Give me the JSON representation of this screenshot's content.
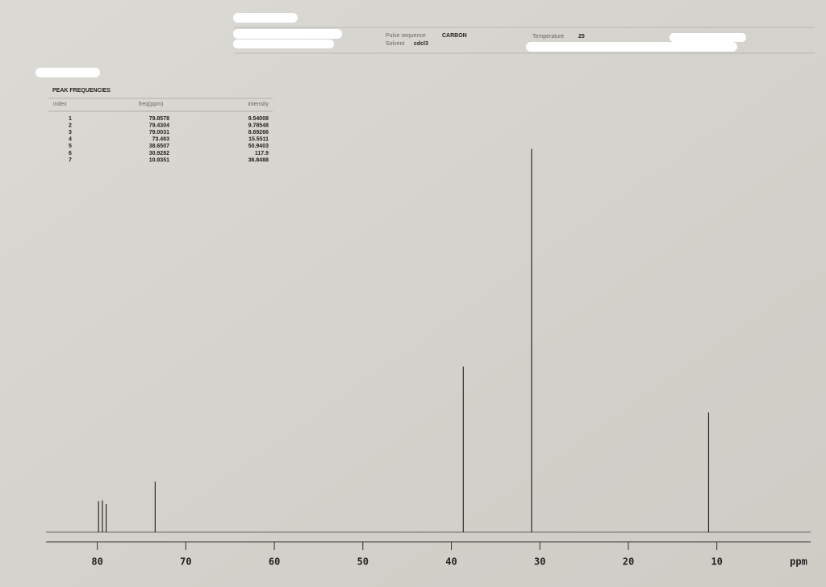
{
  "header": {
    "pulse_sequence_label": "Pulse sequence",
    "pulse_sequence": "CARBON",
    "solvent_label": "Solvent",
    "solvent": "cdcl3",
    "temperature_label": "Temperature",
    "temperature": "25"
  },
  "table": {
    "title": "PEAK FREQUENCIES",
    "columns": [
      "index",
      "freq(ppm)",
      "intensity"
    ],
    "index": [
      "1",
      "2",
      "3",
      "4",
      "5",
      "6",
      "7"
    ]
  },
  "chart_data": {
    "type": "stem",
    "x": [
      79.8578,
      79.4304,
      79.0031,
      73.463,
      38.6507,
      30.9282,
      10.9351
    ],
    "values": [
      9.54008,
      9.78548,
      8.69266,
      15.5511,
      50.9403,
      117.9,
      36.8488
    ],
    "color": "#2a2a2a",
    "xlabel": "ppm",
    "xlim": [
      85.8,
      -0.6
    ],
    "xticks": [
      80,
      70,
      60,
      50,
      40,
      30,
      20,
      10
    ],
    "ylim": [
      0,
      130
    ]
  }
}
